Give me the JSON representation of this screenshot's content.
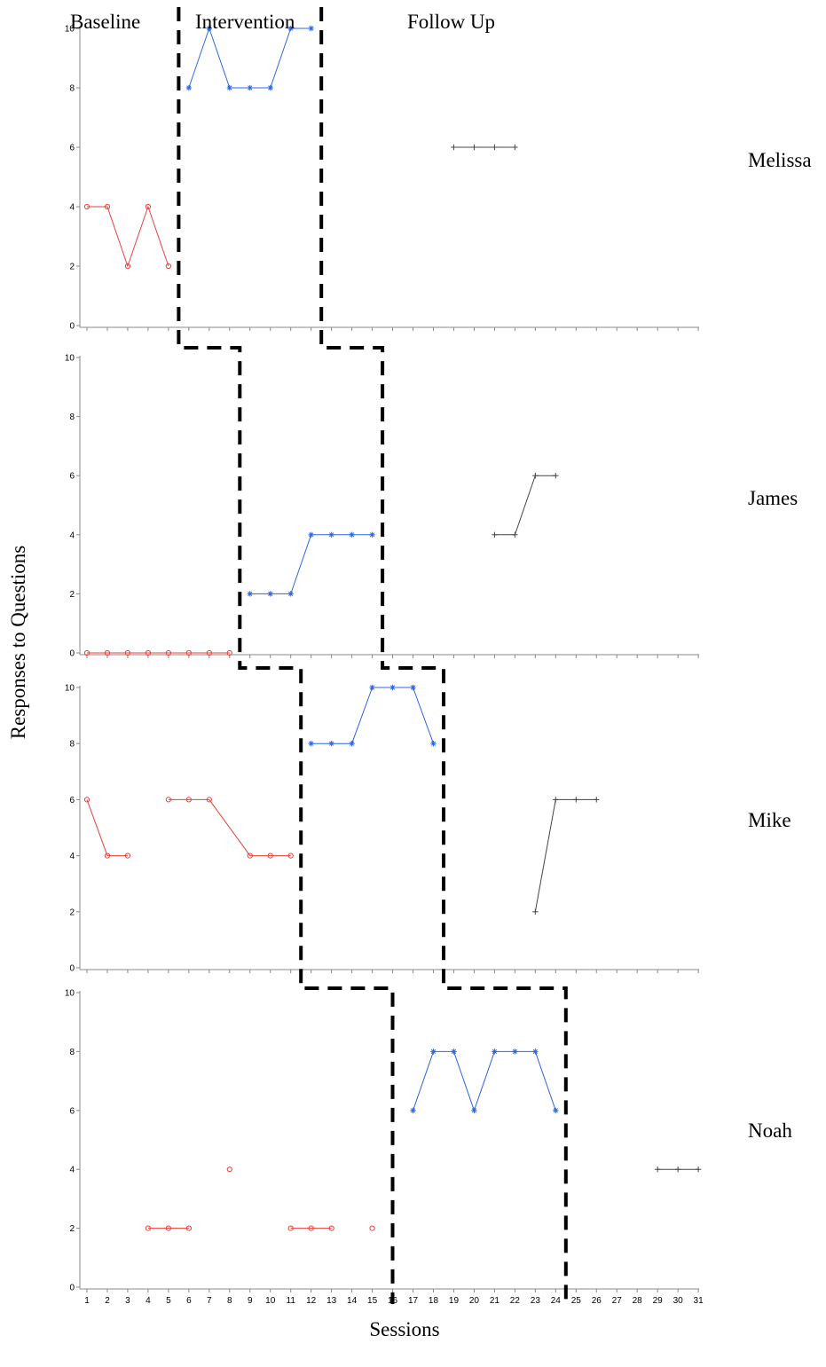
{
  "chart_data": {
    "type": "line",
    "xlabel": "Sessions",
    "ylabel": "Responses to Questions",
    "phases": [
      "Baseline",
      "Intervention",
      "Follow Up"
    ],
    "x_ticks": [
      1,
      2,
      3,
      4,
      5,
      6,
      7,
      8,
      9,
      10,
      11,
      12,
      13,
      14,
      15,
      16,
      17,
      18,
      19,
      20,
      21,
      22,
      23,
      24,
      25,
      26,
      27,
      28,
      29,
      30,
      31
    ],
    "xlim": [
      1,
      31
    ],
    "ylim": [
      0,
      10
    ],
    "y_ticks": [
      0,
      2,
      4,
      6,
      8,
      10
    ],
    "colors": {
      "baseline": "#e8413c",
      "intervention": "#2f66e0",
      "follow_up": "#444444"
    },
    "panels": [
      {
        "name": "Melissa",
        "phase_change_after": [
          5.5,
          12.5
        ],
        "series": [
          {
            "phase": "baseline",
            "marker": "circle",
            "points": [
              [
                1,
                4
              ],
              [
                2,
                4
              ],
              [
                3,
                2
              ],
              [
                4,
                4
              ],
              [
                5,
                2
              ]
            ]
          },
          {
            "phase": "intervention",
            "marker": "asterisk",
            "points": [
              [
                6,
                8
              ],
              [
                7,
                10
              ],
              [
                8,
                8
              ],
              [
                9,
                8
              ],
              [
                10,
                8
              ],
              [
                11,
                10
              ],
              [
                12,
                10
              ]
            ]
          },
          {
            "phase": "follow_up",
            "marker": "plus",
            "points": [
              [
                19,
                6
              ],
              [
                20,
                6
              ],
              [
                21,
                6
              ],
              [
                22,
                6
              ]
            ]
          }
        ]
      },
      {
        "name": "James",
        "phase_change_after": [
          8.5,
          15.5
        ],
        "series": [
          {
            "phase": "baseline",
            "marker": "circle",
            "points": [
              [
                1,
                0
              ],
              [
                2,
                0
              ],
              [
                3,
                0
              ],
              [
                4,
                0
              ],
              [
                5,
                0
              ],
              [
                6,
                0
              ],
              [
                7,
                0
              ],
              [
                8,
                0
              ]
            ]
          },
          {
            "phase": "intervention",
            "marker": "asterisk",
            "points": [
              [
                9,
                2
              ],
              [
                10,
                2
              ],
              [
                11,
                2
              ],
              [
                12,
                4
              ],
              [
                13,
                4
              ],
              [
                14,
                4
              ],
              [
                15,
                4
              ]
            ]
          },
          {
            "phase": "follow_up",
            "marker": "plus",
            "points": [
              [
                21,
                4
              ],
              [
                22,
                4
              ],
              [
                23,
                6
              ],
              [
                24,
                6
              ]
            ]
          }
        ]
      },
      {
        "name": "Mike",
        "phase_change_after": [
          11.5,
          18.5
        ],
        "series": [
          {
            "phase": "baseline",
            "marker": "circle",
            "points": [
              [
                1,
                6
              ],
              [
                2,
                4
              ],
              [
                3,
                4
              ]
            ]
          },
          {
            "phase": "baseline",
            "marker": "circle",
            "points": [
              [
                5,
                6
              ],
              [
                6,
                6
              ],
              [
                7,
                6
              ],
              [
                9,
                4
              ],
              [
                10,
                4
              ],
              [
                11,
                4
              ]
            ]
          },
          {
            "phase": "intervention",
            "marker": "asterisk",
            "points": [
              [
                12,
                8
              ],
              [
                13,
                8
              ],
              [
                14,
                8
              ],
              [
                15,
                10
              ],
              [
                16,
                10
              ],
              [
                17,
                10
              ],
              [
                18,
                8
              ]
            ]
          },
          {
            "phase": "follow_up",
            "marker": "plus",
            "points": [
              [
                23,
                2
              ],
              [
                24,
                6
              ],
              [
                25,
                6
              ],
              [
                26,
                6
              ]
            ]
          }
        ]
      },
      {
        "name": "Noah",
        "phase_change_after": [
          16,
          24.5
        ],
        "series": [
          {
            "phase": "baseline",
            "marker": "circle",
            "points": [
              [
                4,
                2
              ],
              [
                5,
                2
              ],
              [
                6,
                2
              ]
            ]
          },
          {
            "phase": "baseline",
            "marker": "circle",
            "points": [
              [
                8,
                4
              ]
            ]
          },
          {
            "phase": "baseline",
            "marker": "circle",
            "points": [
              [
                11,
                2
              ],
              [
                12,
                2
              ],
              [
                13,
                2
              ]
            ]
          },
          {
            "phase": "baseline",
            "marker": "circle",
            "points": [
              [
                15,
                2
              ]
            ]
          },
          {
            "phase": "intervention",
            "marker": "asterisk",
            "points": [
              [
                17,
                6
              ],
              [
                18,
                8
              ],
              [
                19,
                8
              ],
              [
                20,
                6
              ],
              [
                21,
                8
              ],
              [
                22,
                8
              ],
              [
                23,
                8
              ],
              [
                24,
                6
              ]
            ]
          },
          {
            "phase": "follow_up",
            "marker": "plus",
            "points": [
              [
                29,
                4
              ],
              [
                30,
                4
              ],
              [
                31,
                4
              ]
            ]
          }
        ]
      }
    ]
  }
}
